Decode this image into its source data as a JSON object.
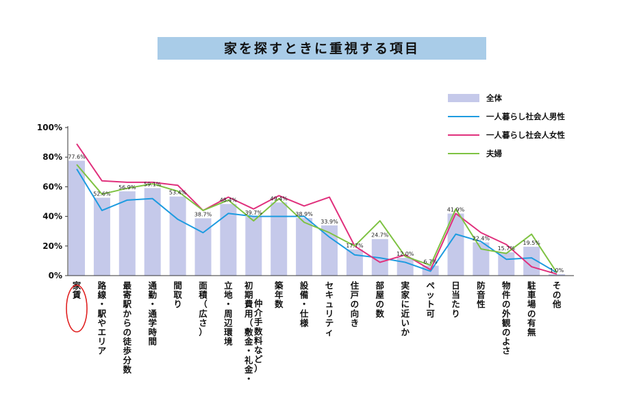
{
  "chart_data": {
    "type": "bar",
    "title": "家を探すときに重視する項目",
    "categories": [
      "家賃",
      "路線・駅やエリア",
      "最寄駅からの徒歩分数",
      "通勤・通学時間",
      "間取り",
      "面積（広さ）",
      "立地・周辺環境",
      "初期費用（敷金・礼金・仲介手数料など）",
      "築年数",
      "設備・仕様",
      "セキュリティ",
      "住戸の向き",
      "部屋の数",
      "実家に近いか",
      "ペット可",
      "日当たり",
      "防音性",
      "物件の外観のよさ",
      "駐車場の有無",
      "その他"
    ],
    "category_lines": [
      [
        "家賃"
      ],
      [
        "路線・駅やエリア"
      ],
      [
        "最寄駅からの徒歩分数"
      ],
      [
        "通勤・通学時間"
      ],
      [
        "間取り"
      ],
      [
        "面積（広さ）"
      ],
      [
        "立地・周辺環境"
      ],
      [
        "初期費用（敷金・礼金・",
        "仲介手数料など）"
      ],
      [
        "築年数"
      ],
      [
        "設備・仕様"
      ],
      [
        "セキュリティ"
      ],
      [
        "住戸の向き"
      ],
      [
        "部屋の数"
      ],
      [
        "実家に近いか"
      ],
      [
        "ペット可"
      ],
      [
        "日当たり"
      ],
      [
        "防音性"
      ],
      [
        "物件の外観のよさ"
      ],
      [
        "駐車場の有無"
      ],
      [
        "その他"
      ]
    ],
    "series": [
      {
        "name": "全体",
        "kind": "bar",
        "color": "#c5c9ea",
        "values": [
          77.6,
          52.6,
          56.9,
          59.1,
          53.4,
          38.7,
          48.4,
          39.7,
          49.4,
          38.9,
          33.9,
          17.7,
          24.7,
          12.0,
          6.7,
          41.9,
          22.4,
          15.7,
          19.5,
          1.0
        ],
        "labels": [
          "77.6%",
          "52.6%",
          "56.9%",
          "59.1%",
          "53.4%",
          "38.7%",
          "48.4%",
          "39.7%",
          "49.4%",
          "38.9%",
          "33.9%",
          "17.7%",
          "24.7%",
          "12.0%",
          "6.7%",
          "41.9%",
          "22.4%",
          "15.7%",
          "19.5%",
          "1.0%"
        ]
      },
      {
        "name": "一人暮らし社会人男性",
        "kind": "line",
        "color": "#1d9be0",
        "values": [
          72,
          44,
          51,
          52,
          38,
          29,
          42,
          40,
          40,
          40,
          26,
          14,
          12,
          9,
          3,
          28,
          23,
          11,
          12,
          2
        ]
      },
      {
        "name": "一人暮らし社会人女性",
        "kind": "line",
        "color": "#e0307c",
        "values": [
          89,
          64,
          63,
          63,
          61,
          44,
          53,
          45,
          54,
          47,
          53,
          20,
          9,
          14,
          4,
          42,
          29,
          21,
          6,
          1
        ]
      },
      {
        "name": "夫婦",
        "kind": "line",
        "color": "#7ec242",
        "values": [
          75,
          55,
          59,
          62,
          57,
          44,
          51,
          37,
          52,
          36,
          29,
          20,
          37,
          13,
          7,
          45,
          18,
          15,
          28,
          2
        ]
      }
    ],
    "y_ticks": [
      "0%",
      "20%",
      "40%",
      "60%",
      "80%",
      "100%"
    ],
    "ylim": [
      0,
      100
    ],
    "legend_position": "top-right",
    "grid": false,
    "highlight": {
      "category": "家賃",
      "shape": "ellipse",
      "color": "#e02020"
    }
  }
}
